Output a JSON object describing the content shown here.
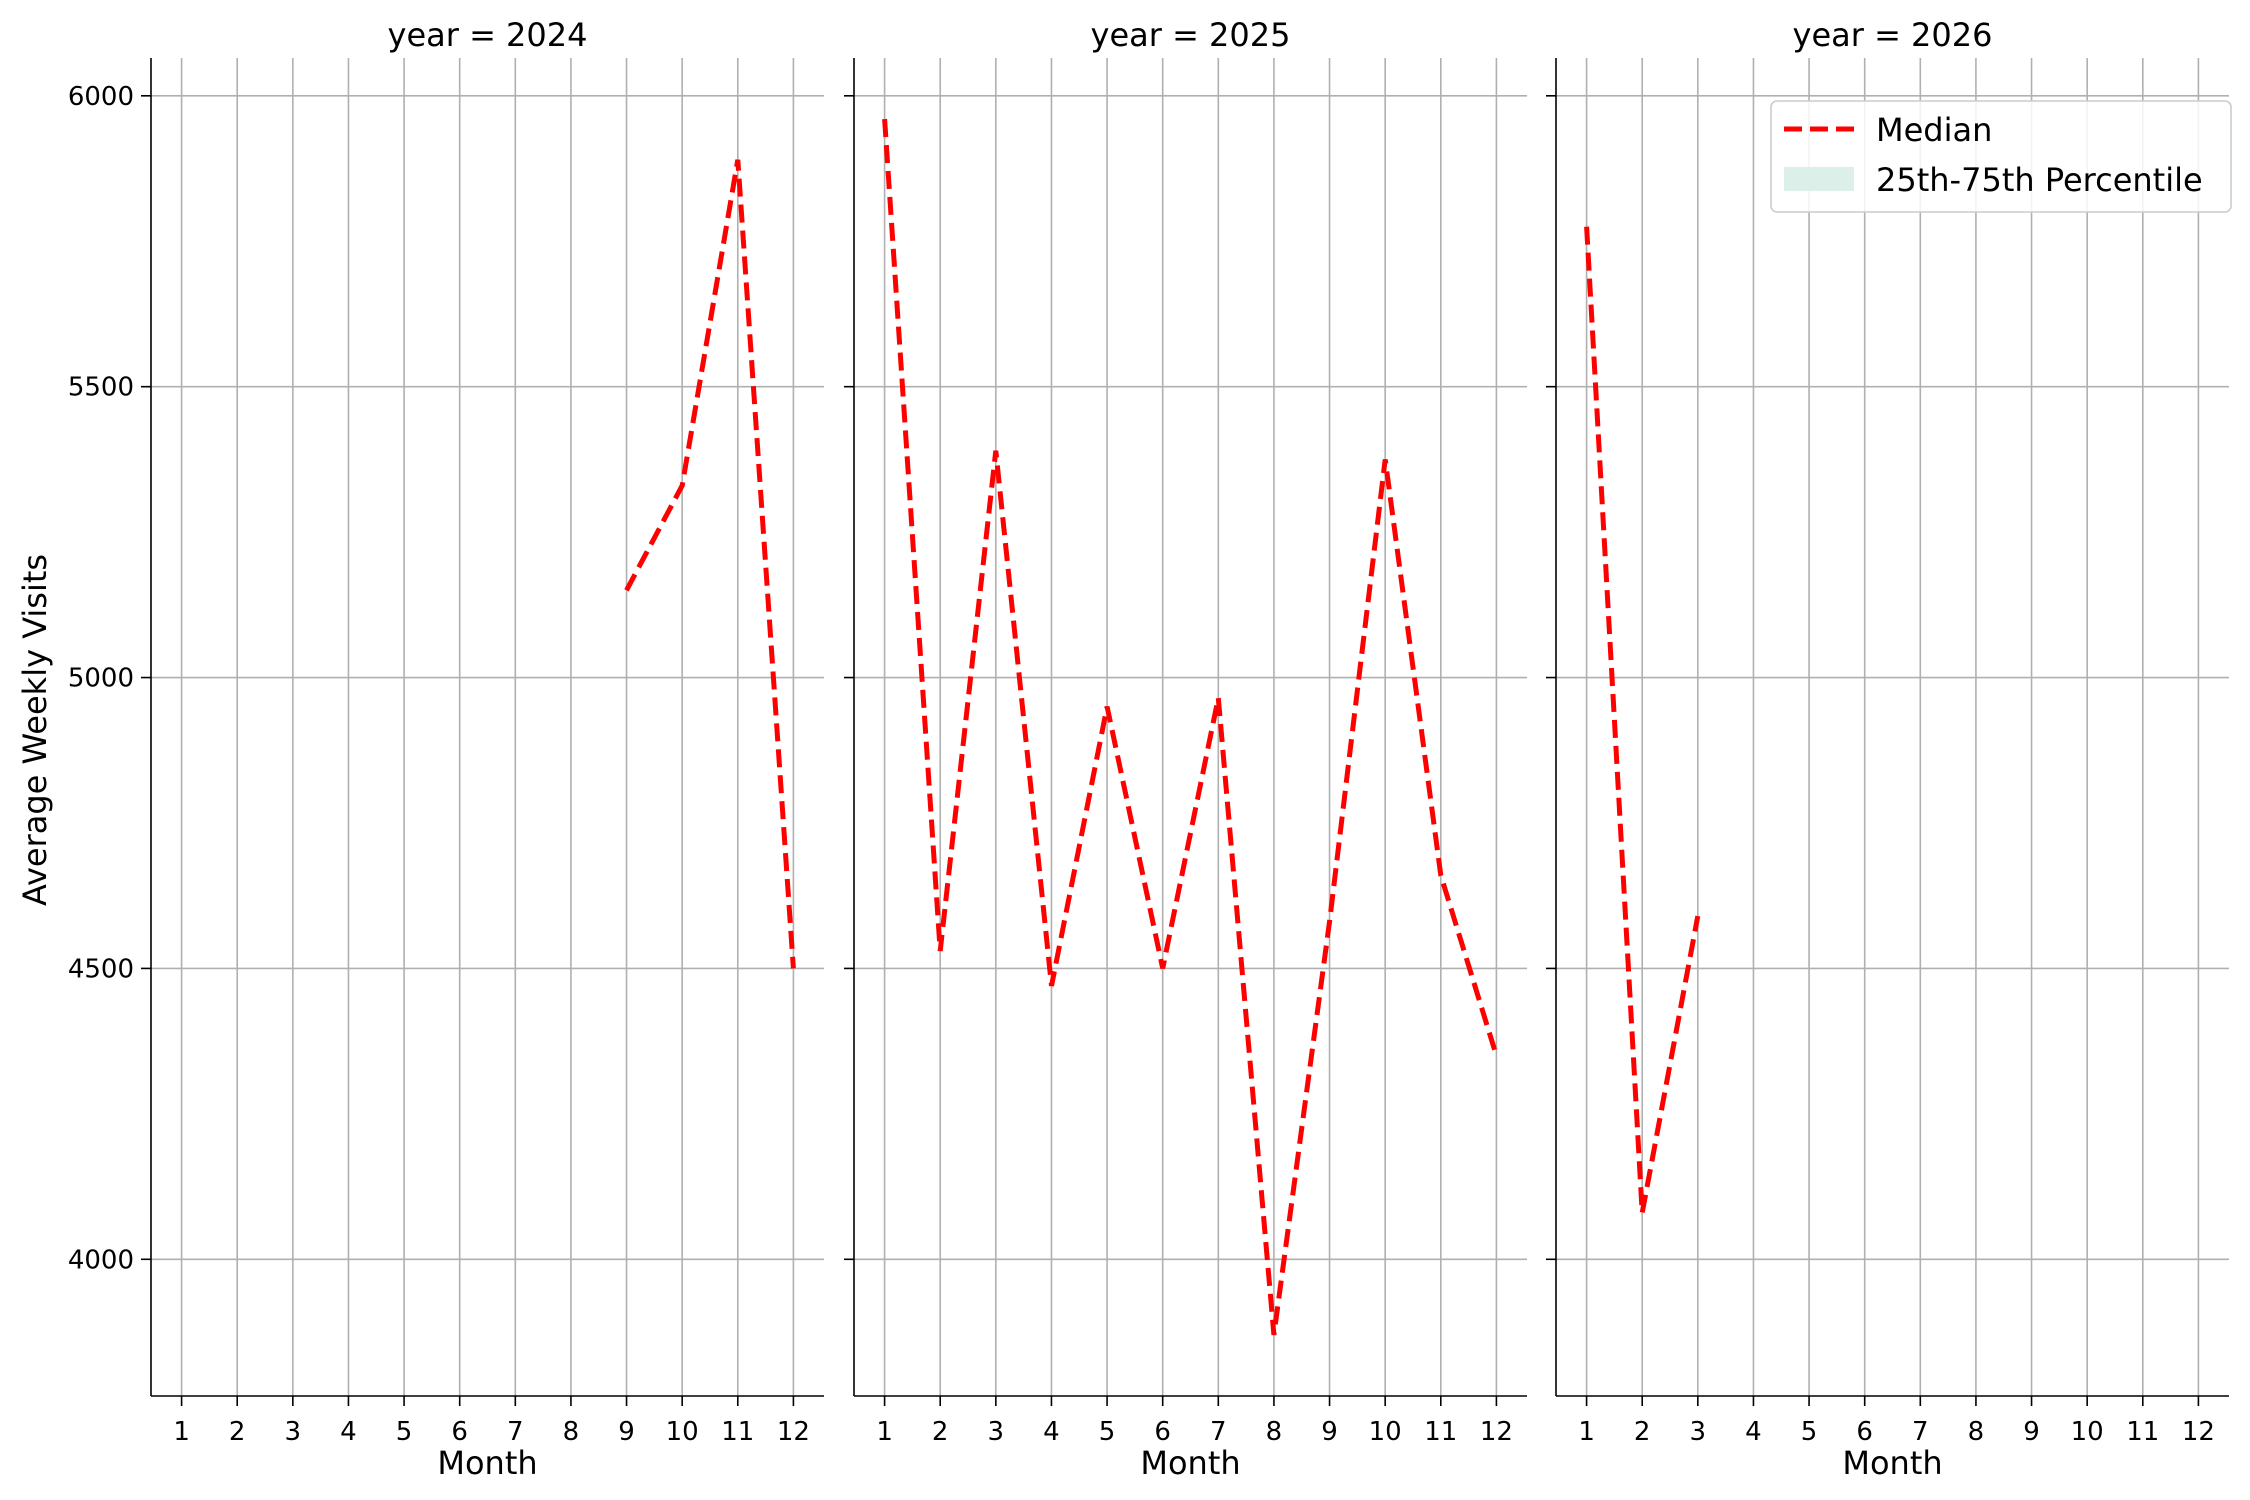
{
  "chart_data": {
    "type": "line",
    "ylabel": "Average Weekly Visits",
    "xlabel": "Month",
    "x_ticks": [
      1,
      2,
      3,
      4,
      5,
      6,
      7,
      8,
      9,
      10,
      11,
      12
    ],
    "y_ticks": [
      4000,
      4500,
      5000,
      5500,
      6000
    ],
    "ylim": [
      3765,
      6065
    ],
    "xlim": [
      0.45,
      12.55
    ],
    "grid": true,
    "legend_placement": "top-right",
    "legend": {
      "median": "Median",
      "band": "25th-75th Percentile"
    },
    "colors": {
      "median": "#ff0000",
      "band": "#dcefe9",
      "grid": "#b0b0b0"
    },
    "panels": [
      {
        "title": "year = 2024",
        "series": [
          {
            "name": "Median",
            "x": [
              9,
              10,
              11,
              12
            ],
            "values": [
              5150,
              5330,
              5890,
              4500
            ]
          }
        ]
      },
      {
        "title": "year = 2025",
        "series": [
          {
            "name": "Median",
            "x": [
              1,
              2,
              3,
              4,
              5,
              6,
              7,
              8,
              9,
              10,
              11,
              12
            ],
            "values": [
              5960,
              4530,
              5390,
              4470,
              4950,
              4500,
              4965,
              3870,
              4580,
              5375,
              4660,
              4350
            ]
          }
        ]
      },
      {
        "title": "year = 2026",
        "series": [
          {
            "name": "Median",
            "x": [
              1,
              2,
              3
            ],
            "values": [
              5775,
              4080,
              4590
            ]
          }
        ]
      }
    ]
  }
}
